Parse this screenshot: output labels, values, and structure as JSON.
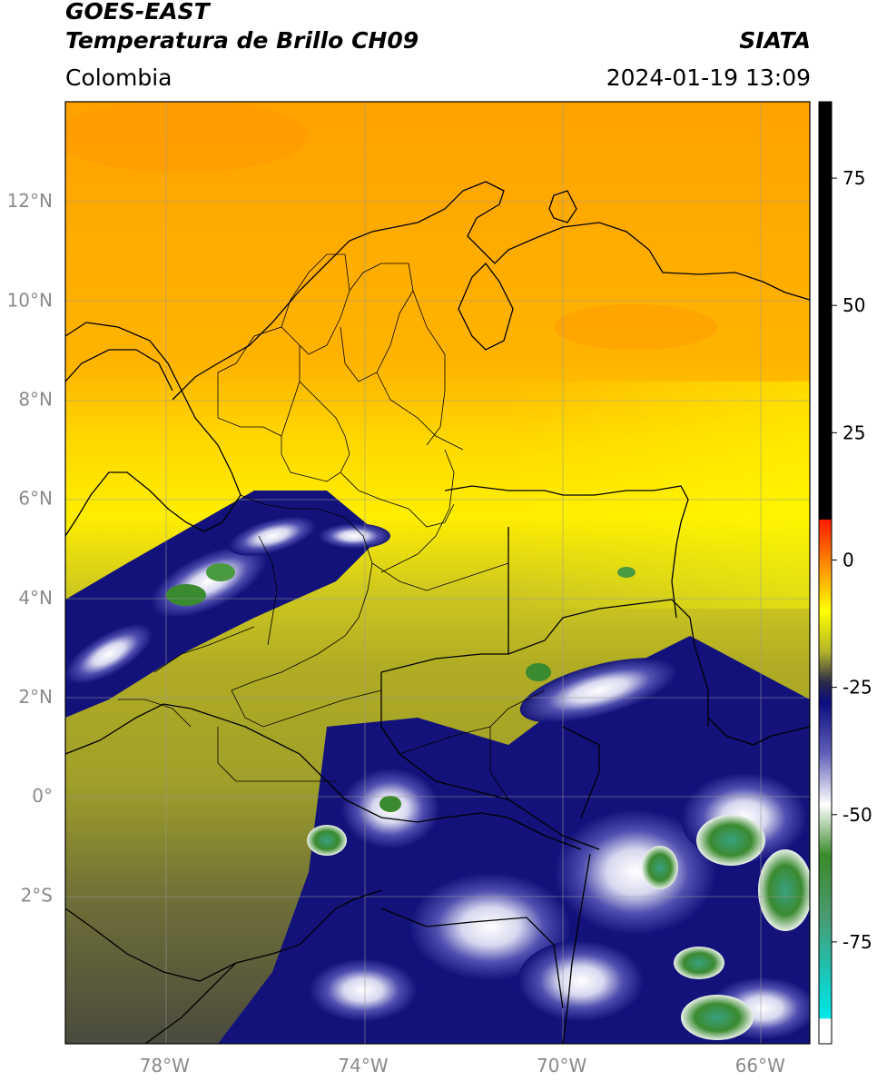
{
  "header": {
    "satellite": "GOES-EAST",
    "product": "Temperatura de Brillo CH09",
    "region": "Colombia",
    "agency": "SIATA",
    "datetime": "2024-01-19 13:09"
  },
  "map": {
    "lon_range": [
      -80,
      -65
    ],
    "lat_range": [
      -5,
      14
    ],
    "lon_ticks": [
      -78,
      -74,
      -70,
      -66
    ],
    "lat_ticks": [
      12,
      10,
      8,
      6,
      4,
      2,
      0,
      -2
    ],
    "lon_tick_labels": [
      "78°W",
      "74°W",
      "70°W",
      "66°W"
    ],
    "lat_tick_labels": [
      "12°N",
      "10°N",
      "8°N",
      "6°N",
      "4°N",
      "2°N",
      "0°",
      "2°S"
    ],
    "gridlines": true
  },
  "colorbar": {
    "range": [
      -95,
      90
    ],
    "ticks": [
      75,
      50,
      25,
      0,
      -25,
      -50,
      -75
    ],
    "tick_labels": [
      "75",
      "50",
      "25",
      "0",
      "-25",
      "-50",
      "-75"
    ],
    "stops": [
      {
        "value": 90,
        "color": "#000000"
      },
      {
        "value": 8,
        "color": "#000000"
      },
      {
        "value": 7.9,
        "color": "#ff1a00"
      },
      {
        "value": 0,
        "color": "#ff8000"
      },
      {
        "value": -10,
        "color": "#ffff00"
      },
      {
        "value": -18,
        "color": "#b4b42a"
      },
      {
        "value": -24,
        "color": "#2a2a4a"
      },
      {
        "value": -28,
        "color": "#0c0c80"
      },
      {
        "value": -38,
        "color": "#6060b8"
      },
      {
        "value": -48,
        "color": "#ffffff"
      },
      {
        "value": -58,
        "color": "#3a8a2a"
      },
      {
        "value": -70,
        "color": "#4a9a70"
      },
      {
        "value": -80,
        "color": "#20c0b0"
      },
      {
        "value": -90,
        "color": "#00e8e8"
      },
      {
        "value": -90.1,
        "color": "#ffffff"
      },
      {
        "value": -95,
        "color": "#ffffff"
      }
    ]
  }
}
